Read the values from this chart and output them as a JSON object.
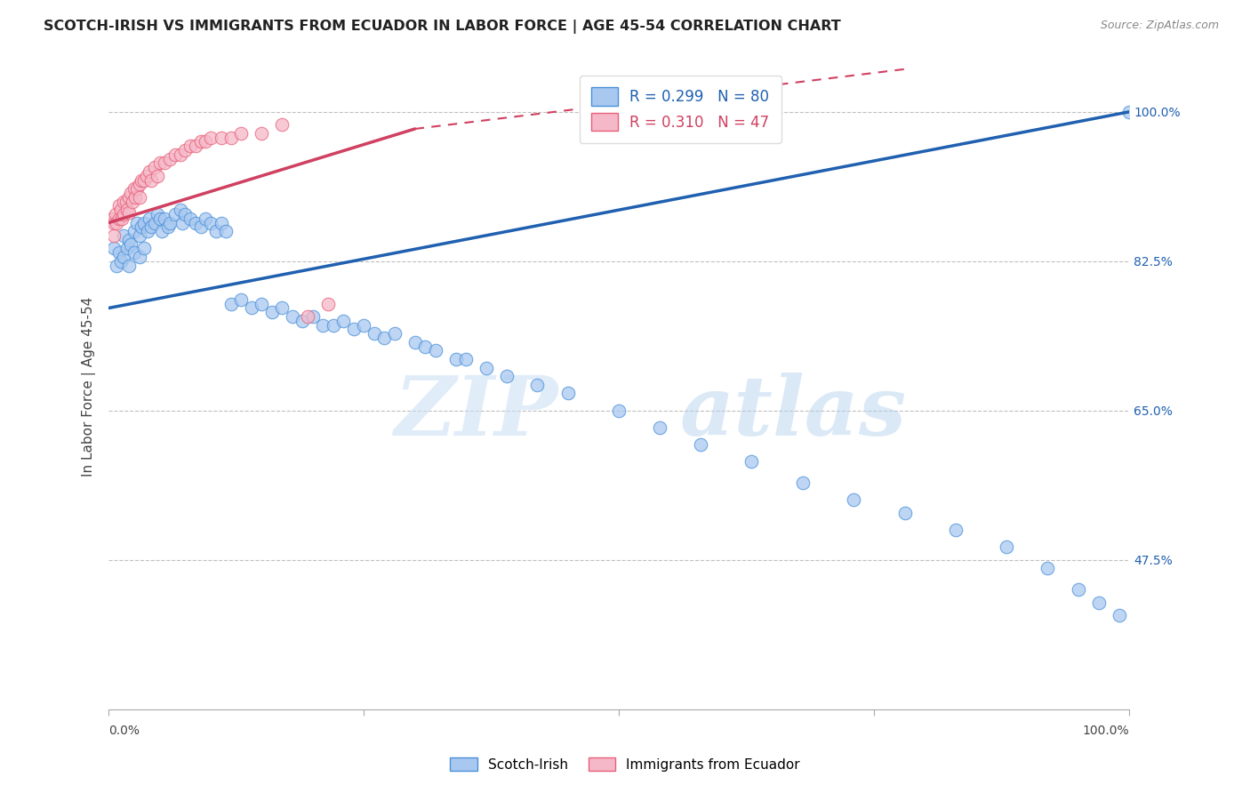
{
  "title": "SCOTCH-IRISH VS IMMIGRANTS FROM ECUADOR IN LABOR FORCE | AGE 45-54 CORRELATION CHART",
  "source": "Source: ZipAtlas.com",
  "ylabel": "In Labor Force | Age 45-54",
  "ytick_labels": [
    "100.0%",
    "82.5%",
    "65.0%",
    "47.5%"
  ],
  "ytick_values": [
    1.0,
    0.825,
    0.65,
    0.475
  ],
  "blue_color": "#A8C8F0",
  "pink_color": "#F5B8C8",
  "blue_edge_color": "#4A90D9",
  "pink_edge_color": "#E8607A",
  "blue_line_color": "#2060B0",
  "pink_line_color": "#D04060",
  "blue_R": 0.299,
  "blue_N": 80,
  "pink_R": 0.31,
  "pink_N": 47,
  "legend_label_blue": "Scotch-Irish",
  "legend_label_pink": "Immigrants from Ecuador",
  "watermark_zip": "ZIP",
  "watermark_atlas": "atlas",
  "blue_x": [
    0.005,
    0.008,
    0.01,
    0.012,
    0.015,
    0.015,
    0.018,
    0.02,
    0.02,
    0.022,
    0.025,
    0.025,
    0.028,
    0.03,
    0.03,
    0.032,
    0.035,
    0.035,
    0.038,
    0.04,
    0.042,
    0.045,
    0.048,
    0.05,
    0.052,
    0.055,
    0.058,
    0.06,
    0.065,
    0.07,
    0.072,
    0.075,
    0.08,
    0.085,
    0.09,
    0.095,
    0.1,
    0.105,
    0.11,
    0.115,
    0.12,
    0.13,
    0.14,
    0.15,
    0.16,
    0.17,
    0.18,
    0.19,
    0.2,
    0.21,
    0.22,
    0.23,
    0.24,
    0.25,
    0.26,
    0.27,
    0.28,
    0.3,
    0.31,
    0.32,
    0.34,
    0.35,
    0.37,
    0.39,
    0.42,
    0.45,
    0.5,
    0.54,
    0.58,
    0.63,
    0.68,
    0.73,
    0.78,
    0.83,
    0.88,
    0.92,
    0.95,
    0.97,
    0.99,
    1.0
  ],
  "blue_y": [
    0.84,
    0.82,
    0.835,
    0.825,
    0.855,
    0.83,
    0.84,
    0.85,
    0.82,
    0.845,
    0.86,
    0.835,
    0.87,
    0.855,
    0.83,
    0.865,
    0.87,
    0.84,
    0.86,
    0.875,
    0.865,
    0.87,
    0.88,
    0.875,
    0.86,
    0.875,
    0.865,
    0.87,
    0.88,
    0.885,
    0.87,
    0.88,
    0.875,
    0.87,
    0.865,
    0.875,
    0.87,
    0.86,
    0.87,
    0.86,
    0.775,
    0.78,
    0.77,
    0.775,
    0.765,
    0.77,
    0.76,
    0.755,
    0.76,
    0.75,
    0.75,
    0.755,
    0.745,
    0.75,
    0.74,
    0.735,
    0.74,
    0.73,
    0.725,
    0.72,
    0.71,
    0.71,
    0.7,
    0.69,
    0.68,
    0.67,
    0.65,
    0.63,
    0.61,
    0.59,
    0.565,
    0.545,
    0.53,
    0.51,
    0.49,
    0.465,
    0.44,
    0.425,
    0.41,
    1.0
  ],
  "pink_x": [
    0.003,
    0.005,
    0.005,
    0.007,
    0.008,
    0.01,
    0.01,
    0.012,
    0.013,
    0.015,
    0.015,
    0.017,
    0.018,
    0.02,
    0.02,
    0.022,
    0.023,
    0.025,
    0.026,
    0.028,
    0.03,
    0.03,
    0.032,
    0.035,
    0.037,
    0.04,
    0.042,
    0.045,
    0.048,
    0.05,
    0.055,
    0.06,
    0.065,
    0.07,
    0.075,
    0.08,
    0.085,
    0.09,
    0.095,
    0.1,
    0.11,
    0.12,
    0.13,
    0.15,
    0.17,
    0.195,
    0.215
  ],
  "pink_y": [
    0.875,
    0.87,
    0.855,
    0.88,
    0.87,
    0.89,
    0.875,
    0.885,
    0.875,
    0.895,
    0.88,
    0.895,
    0.885,
    0.9,
    0.882,
    0.905,
    0.895,
    0.91,
    0.9,
    0.91,
    0.915,
    0.9,
    0.92,
    0.92,
    0.925,
    0.93,
    0.92,
    0.935,
    0.925,
    0.94,
    0.94,
    0.945,
    0.95,
    0.95,
    0.955,
    0.96,
    0.96,
    0.965,
    0.965,
    0.97,
    0.97,
    0.97,
    0.975,
    0.975,
    0.985,
    0.76,
    0.775
  ]
}
